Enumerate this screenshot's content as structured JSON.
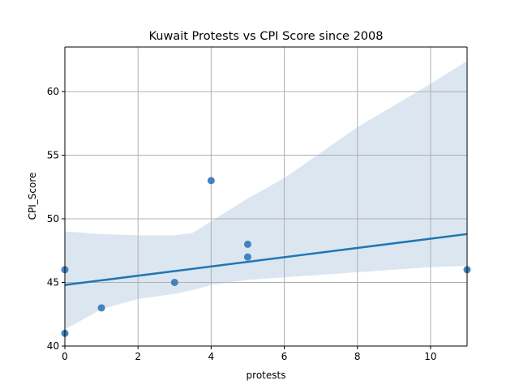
{
  "chart_data": {
    "type": "scatter",
    "title": "Kuwait Protests vs CPI Score since 2008",
    "xlabel": "protests",
    "ylabel": "CPI_Score",
    "xlim": [
      0,
      11
    ],
    "ylim": [
      40,
      63.5
    ],
    "xticks": [
      0,
      2,
      4,
      6,
      8,
      10
    ],
    "yticks": [
      40,
      45,
      50,
      55,
      60
    ],
    "grid": true,
    "points": [
      {
        "x": 0,
        "y": 46
      },
      {
        "x": 0,
        "y": 41
      },
      {
        "x": 1,
        "y": 43
      },
      {
        "x": 3,
        "y": 45
      },
      {
        "x": 4,
        "y": 53
      },
      {
        "x": 5,
        "y": 48
      },
      {
        "x": 5,
        "y": 47
      },
      {
        "x": 11,
        "y": 46
      }
    ],
    "regression": {
      "x": [
        0,
        11
      ],
      "y": [
        44.8,
        48.8
      ]
    },
    "confidence_band": {
      "x": [
        0,
        1,
        2,
        3,
        3.5,
        4,
        5,
        6,
        7,
        8,
        9,
        10,
        11
      ],
      "upper": [
        49.0,
        48.8,
        48.7,
        48.7,
        48.9,
        49.8,
        51.6,
        53.2,
        55.2,
        57.2,
        58.9,
        60.6,
        62.4
      ],
      "lower": [
        41.3,
        42.9,
        43.7,
        44.1,
        44.4,
        44.8,
        45.2,
        45.4,
        45.6,
        45.8,
        46.0,
        46.2,
        46.3
      ]
    },
    "colors": {
      "point": "#3a7db8",
      "line": "#1f77b4",
      "band": "#dbe6f1"
    }
  }
}
